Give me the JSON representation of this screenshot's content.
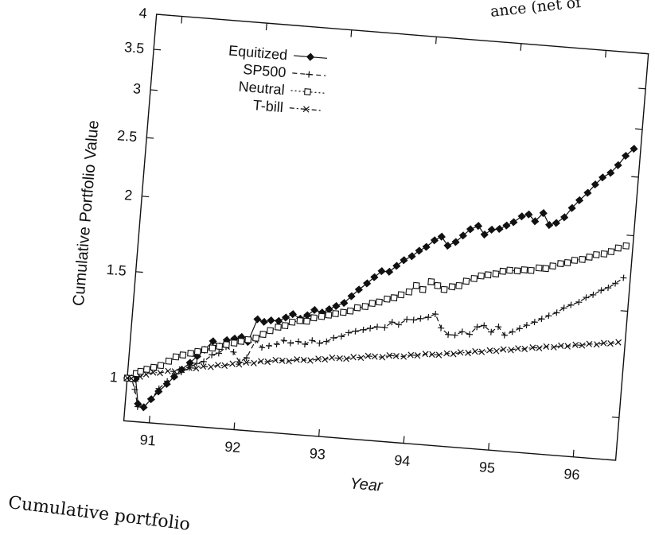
{
  "page": {
    "top_fragment": "ance (net of",
    "caption_fragment": "Cumulative portfolio"
  },
  "chart_data": {
    "type": "line",
    "title": "",
    "xlabel": "Year",
    "ylabel": "Cumulative Portfolio Value",
    "xlim": [
      90.7,
      96.5
    ],
    "ylim": [
      0.85,
      4.0
    ],
    "y_scale": "log",
    "x_ticks": [
      91,
      92,
      93,
      94,
      95,
      96
    ],
    "y_ticks": [
      1,
      1.5,
      2,
      2.5,
      3,
      3.5,
      4
    ],
    "legend_position": "top-left",
    "grid": false,
    "series": [
      {
        "name": "Equitized",
        "style": "solid line with filled diamond markers",
        "x": [
          90.7,
          90.75,
          90.8,
          90.85,
          90.92,
          91.0,
          91.08,
          91.17,
          91.25,
          91.33,
          91.42,
          91.5,
          91.58,
          91.67,
          91.75,
          91.83,
          91.92,
          92.0,
          92.08,
          92.17,
          92.25,
          92.33,
          92.42,
          92.5,
          92.58,
          92.67,
          92.75,
          92.83,
          92.92,
          93.0,
          93.08,
          93.17,
          93.25,
          93.33,
          93.42,
          93.5,
          93.58,
          93.67,
          93.75,
          93.83,
          93.92,
          94.0,
          94.08,
          94.17,
          94.25,
          94.33,
          94.42,
          94.5,
          94.58,
          94.67,
          94.75,
          94.83,
          94.92,
          95.0,
          95.08,
          95.17,
          95.25,
          95.33,
          95.42,
          95.5,
          95.58,
          95.67,
          95.75,
          95.83,
          95.92,
          96.0,
          96.08,
          96.17,
          96.25,
          96.33,
          96.42
        ],
        "y": [
          1.0,
          1.0,
          1.0,
          0.91,
          0.9,
          0.93,
          0.96,
          0.99,
          1.02,
          1.05,
          1.08,
          1.11,
          1.14,
          1.18,
          1.16,
          1.19,
          1.2,
          1.21,
          1.19,
          1.3,
          1.29,
          1.3,
          1.3,
          1.32,
          1.34,
          1.32,
          1.34,
          1.37,
          1.36,
          1.38,
          1.4,
          1.42,
          1.46,
          1.5,
          1.54,
          1.58,
          1.62,
          1.62,
          1.66,
          1.7,
          1.73,
          1.77,
          1.8,
          1.85,
          1.88,
          1.82,
          1.85,
          1.9,
          1.95,
          1.98,
          1.92,
          1.96,
          1.97,
          2.0,
          2.03,
          2.08,
          2.1,
          2.05,
          2.12,
          2.03,
          2.05,
          2.1,
          2.18,
          2.25,
          2.32,
          2.4,
          2.47,
          2.52,
          2.6,
          2.7,
          2.78
        ]
      },
      {
        "name": "SP500",
        "style": "dashed line with plus markers",
        "x": [
          90.7,
          90.75,
          90.8,
          90.85,
          90.92,
          91.0,
          91.08,
          91.17,
          91.25,
          91.33,
          91.42,
          91.5,
          91.58,
          91.67,
          91.75,
          91.83,
          91.92,
          92.0,
          92.08,
          92.17,
          92.25,
          92.33,
          92.42,
          92.5,
          92.58,
          92.67,
          92.75,
          92.83,
          92.92,
          93.0,
          93.08,
          93.17,
          93.25,
          93.33,
          93.42,
          93.5,
          93.58,
          93.67,
          93.75,
          93.83,
          93.92,
          94.0,
          94.08,
          94.17,
          94.25,
          94.33,
          94.42,
          94.5,
          94.58,
          94.67,
          94.75,
          94.83,
          94.92,
          95.0,
          95.08,
          95.17,
          95.25,
          95.33,
          95.42,
          95.5,
          95.58,
          95.67,
          95.75,
          95.83,
          95.92,
          96.0,
          96.08,
          96.17,
          96.25,
          96.33,
          96.42
        ],
        "y": [
          1.0,
          1.0,
          0.96,
          0.9,
          0.9,
          0.93,
          0.97,
          1.0,
          1.02,
          1.04,
          1.06,
          1.08,
          1.09,
          1.12,
          1.13,
          1.16,
          1.14,
          1.1,
          1.12,
          1.2,
          1.17,
          1.18,
          1.19,
          1.21,
          1.2,
          1.21,
          1.2,
          1.22,
          1.21,
          1.22,
          1.24,
          1.25,
          1.27,
          1.28,
          1.29,
          1.3,
          1.31,
          1.31,
          1.34,
          1.33,
          1.36,
          1.36,
          1.37,
          1.38,
          1.4,
          1.33,
          1.3,
          1.3,
          1.32,
          1.31,
          1.35,
          1.36,
          1.33,
          1.36,
          1.32,
          1.34,
          1.36,
          1.38,
          1.4,
          1.42,
          1.44,
          1.46,
          1.49,
          1.51,
          1.53,
          1.56,
          1.58,
          1.61,
          1.63,
          1.66,
          1.7
        ]
      },
      {
        "name": "Neutral",
        "style": "dotted line with open square markers",
        "x": [
          90.7,
          90.75,
          90.8,
          90.85,
          90.92,
          91.0,
          91.08,
          91.17,
          91.25,
          91.33,
          91.42,
          91.5,
          91.58,
          91.67,
          91.75,
          91.83,
          91.92,
          92.0,
          92.08,
          92.17,
          92.25,
          92.33,
          92.42,
          92.5,
          92.58,
          92.67,
          92.75,
          92.83,
          92.92,
          93.0,
          93.08,
          93.17,
          93.25,
          93.33,
          93.42,
          93.5,
          93.58,
          93.67,
          93.75,
          93.83,
          93.92,
          94.0,
          94.08,
          94.17,
          94.25,
          94.33,
          94.42,
          94.5,
          94.58,
          94.67,
          94.75,
          94.83,
          94.92,
          95.0,
          95.08,
          95.17,
          95.25,
          95.33,
          95.42,
          95.5,
          95.58,
          95.67,
          95.75,
          95.83,
          95.92,
          96.0,
          96.08,
          96.17,
          96.25,
          96.33,
          96.42
        ],
        "y": [
          1.0,
          1.0,
          1.02,
          1.03,
          1.04,
          1.05,
          1.06,
          1.08,
          1.1,
          1.11,
          1.12,
          1.13,
          1.14,
          1.15,
          1.16,
          1.17,
          1.18,
          1.19,
          1.2,
          1.21,
          1.23,
          1.25,
          1.27,
          1.28,
          1.3,
          1.31,
          1.31,
          1.33,
          1.34,
          1.35,
          1.36,
          1.37,
          1.38,
          1.4,
          1.41,
          1.43,
          1.44,
          1.46,
          1.47,
          1.49,
          1.51,
          1.55,
          1.53,
          1.58,
          1.56,
          1.54,
          1.56,
          1.57,
          1.6,
          1.62,
          1.64,
          1.65,
          1.66,
          1.68,
          1.69,
          1.69,
          1.7,
          1.7,
          1.72,
          1.72,
          1.74,
          1.76,
          1.77,
          1.79,
          1.8,
          1.82,
          1.84,
          1.85,
          1.87,
          1.9,
          1.92
        ]
      },
      {
        "name": "T-bill",
        "style": "dash-dot line with x markers",
        "x": [
          90.7,
          90.75,
          90.8,
          90.85,
          90.92,
          91.0,
          91.08,
          91.17,
          91.25,
          91.33,
          91.42,
          91.5,
          91.58,
          91.67,
          91.75,
          91.83,
          91.92,
          92.0,
          92.08,
          92.17,
          92.25,
          92.33,
          92.42,
          92.5,
          92.58,
          92.67,
          92.75,
          92.83,
          92.92,
          93.0,
          93.08,
          93.17,
          93.25,
          93.33,
          93.42,
          93.5,
          93.58,
          93.67,
          93.75,
          93.83,
          93.92,
          94.0,
          94.08,
          94.17,
          94.25,
          94.33,
          94.42,
          94.5,
          94.58,
          94.67,
          94.75,
          94.83,
          94.92,
          95.0,
          95.08,
          95.17,
          95.25,
          95.33,
          95.42,
          95.5,
          95.58,
          95.67,
          95.75,
          95.83,
          95.92,
          96.0,
          96.08,
          96.17,
          96.25,
          96.33,
          96.42
        ],
        "y": [
          1.0,
          1.0,
          1.0,
          1.01,
          1.02,
          1.03,
          1.03,
          1.04,
          1.04,
          1.05,
          1.06,
          1.06,
          1.07,
          1.07,
          1.08,
          1.08,
          1.09,
          1.09,
          1.1,
          1.1,
          1.11,
          1.11,
          1.12,
          1.12,
          1.12,
          1.13,
          1.13,
          1.13,
          1.14,
          1.14,
          1.15,
          1.15,
          1.15,
          1.16,
          1.16,
          1.17,
          1.17,
          1.17,
          1.18,
          1.18,
          1.18,
          1.19,
          1.19,
          1.2,
          1.2,
          1.2,
          1.21,
          1.21,
          1.22,
          1.22,
          1.23,
          1.23,
          1.24,
          1.24,
          1.25,
          1.25,
          1.26,
          1.26,
          1.27,
          1.27,
          1.28,
          1.28,
          1.29,
          1.29,
          1.3,
          1.3,
          1.31,
          1.31,
          1.32,
          1.32,
          1.33
        ]
      }
    ]
  }
}
